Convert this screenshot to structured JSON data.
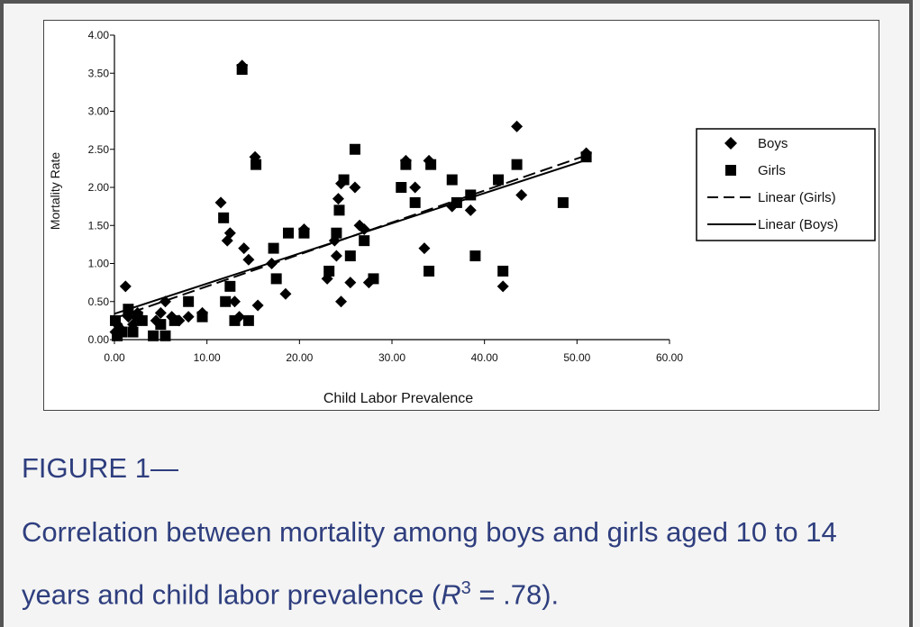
{
  "figure": {
    "label": "FIGURE 1—",
    "caption_before": "Correlation between mortality among boys and girls aged 10 to 14 years and child labor prevalence (",
    "r_symbol": "R",
    "r_superscript": "3",
    "caption_after": " = .78)."
  },
  "chart_data": {
    "type": "scatter",
    "title": "",
    "xlabel": "Child Labor Prevalence",
    "ylabel": "Mortality Rate",
    "xlim": [
      0,
      60
    ],
    "ylim": [
      0,
      4
    ],
    "xticks": [
      "0.00",
      "10.00",
      "20.00",
      "30.00",
      "40.00",
      "50.00",
      "60.00"
    ],
    "yticks": [
      "0.00",
      "0.50",
      "1.00",
      "1.50",
      "2.00",
      "2.50",
      "3.00",
      "3.50",
      "4.00"
    ],
    "grid": false,
    "legend_position": "right",
    "series": [
      {
        "name": "Boys",
        "marker": "diamond",
        "color": "#000000",
        "points": [
          [
            0.1,
            0.1
          ],
          [
            0.3,
            0.2
          ],
          [
            0.6,
            0.15
          ],
          [
            1.2,
            0.7
          ],
          [
            1.5,
            0.3
          ],
          [
            2.0,
            0.2
          ],
          [
            2.5,
            0.35
          ],
          [
            4.5,
            0.25
          ],
          [
            5.0,
            0.35
          ],
          [
            5.5,
            0.5
          ],
          [
            6.2,
            0.3
          ],
          [
            7.0,
            0.25
          ],
          [
            8.0,
            0.3
          ],
          [
            9.5,
            0.35
          ],
          [
            11.5,
            1.8
          ],
          [
            12.2,
            1.3
          ],
          [
            12.5,
            1.4
          ],
          [
            13.0,
            0.5
          ],
          [
            13.5,
            0.3
          ],
          [
            13.8,
            3.6
          ],
          [
            14.0,
            1.2
          ],
          [
            14.5,
            1.05
          ],
          [
            15.2,
            2.4
          ],
          [
            15.5,
            0.45
          ],
          [
            17.0,
            1.0
          ],
          [
            18.5,
            0.6
          ],
          [
            20.5,
            1.45
          ],
          [
            23.0,
            0.8
          ],
          [
            23.8,
            1.3
          ],
          [
            24.0,
            1.1
          ],
          [
            24.2,
            1.85
          ],
          [
            24.5,
            2.05
          ],
          [
            24.5,
            0.5
          ],
          [
            25.5,
            0.75
          ],
          [
            26.0,
            2.0
          ],
          [
            26.5,
            1.5
          ],
          [
            27.0,
            1.45
          ],
          [
            27.5,
            0.75
          ],
          [
            31.5,
            2.35
          ],
          [
            32.5,
            2.0
          ],
          [
            33.5,
            1.2
          ],
          [
            34.0,
            2.35
          ],
          [
            36.5,
            1.75
          ],
          [
            38.5,
            1.7
          ],
          [
            42.0,
            0.7
          ],
          [
            43.5,
            2.8
          ],
          [
            44.0,
            1.9
          ],
          [
            51.0,
            2.45
          ]
        ]
      },
      {
        "name": "Girls",
        "marker": "square",
        "color": "#000000",
        "points": [
          [
            0.1,
            0.25
          ],
          [
            0.3,
            0.05
          ],
          [
            0.8,
            0.1
          ],
          [
            1.5,
            0.4
          ],
          [
            2.0,
            0.1
          ],
          [
            2.5,
            0.3
          ],
          [
            3.0,
            0.25
          ],
          [
            4.2,
            0.05
          ],
          [
            5.0,
            0.2
          ],
          [
            5.5,
            0.05
          ],
          [
            6.5,
            0.25
          ],
          [
            8.0,
            0.5
          ],
          [
            9.5,
            0.3
          ],
          [
            11.8,
            1.6
          ],
          [
            12.0,
            0.5
          ],
          [
            12.5,
            0.7
          ],
          [
            13.0,
            0.25
          ],
          [
            13.8,
            3.55
          ],
          [
            14.5,
            0.25
          ],
          [
            15.3,
            2.3
          ],
          [
            17.2,
            1.2
          ],
          [
            17.5,
            0.8
          ],
          [
            18.8,
            1.4
          ],
          [
            20.5,
            1.4
          ],
          [
            23.2,
            0.9
          ],
          [
            24.0,
            1.4
          ],
          [
            24.3,
            1.7
          ],
          [
            24.8,
            2.1
          ],
          [
            25.5,
            1.1
          ],
          [
            26.0,
            2.5
          ],
          [
            27.0,
            1.3
          ],
          [
            28.0,
            0.8
          ],
          [
            31.0,
            2.0
          ],
          [
            31.5,
            2.3
          ],
          [
            32.5,
            1.8
          ],
          [
            34.0,
            0.9
          ],
          [
            34.2,
            2.3
          ],
          [
            36.5,
            2.1
          ],
          [
            37.0,
            1.8
          ],
          [
            38.5,
            1.9
          ],
          [
            39.0,
            1.1
          ],
          [
            41.5,
            2.1
          ],
          [
            42.0,
            0.9
          ],
          [
            43.5,
            2.3
          ],
          [
            48.5,
            1.8
          ],
          [
            51.0,
            2.4
          ]
        ]
      },
      {
        "name": "Linear (Girls)",
        "type": "line",
        "style": "dashed",
        "x": [
          0,
          51
        ],
        "y": [
          0.28,
          2.42
        ]
      },
      {
        "name": "Linear (Boys)",
        "type": "line",
        "style": "solid",
        "x": [
          0,
          51
        ],
        "y": [
          0.34,
          2.36
        ]
      }
    ]
  }
}
